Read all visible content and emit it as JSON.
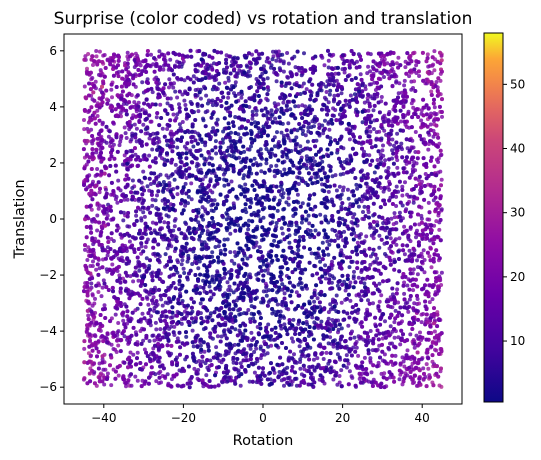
{
  "chart_data": {
    "type": "scatter",
    "title": "Surprise (color coded) vs rotation and translation",
    "xlabel": "Rotation",
    "ylabel": "Translation",
    "xlim": [
      -50,
      50
    ],
    "ylim": [
      -6.6,
      6.6
    ],
    "x_ticks": [
      -40,
      -20,
      0,
      20,
      40
    ],
    "x_tick_labels": [
      "−40",
      "−20",
      "0",
      "20",
      "40"
    ],
    "y_ticks": [
      -6,
      -4,
      -2,
      0,
      2,
      4,
      6
    ],
    "y_tick_labels": [
      "−6",
      "−4",
      "−2",
      "0",
      "2",
      "4",
      "6"
    ],
    "colormap": "plasma",
    "colorbar": {
      "range": [
        0.5,
        58
      ],
      "ticks": [
        10,
        20,
        30,
        40,
        50
      ],
      "tick_labels": [
        "10",
        "20",
        "30",
        "40",
        "50"
      ]
    },
    "grid": false,
    "points_description_sample": {
      "x_range": [
        -45,
        45
      ],
      "y_range": [
        -6,
        6
      ],
      "approx_count": 10000,
      "value_model": "surprise increases with |rotation| and slightly with |translation|"
    }
  }
}
